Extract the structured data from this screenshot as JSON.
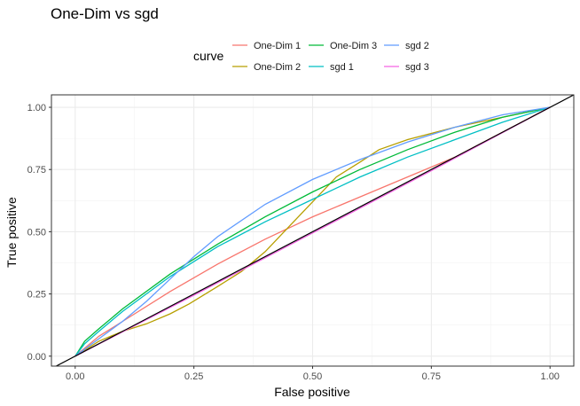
{
  "chart_data": {
    "type": "line",
    "title": "One-Dim vs sgd",
    "xlabel": "False positive",
    "ylabel": "True positive",
    "xlim": [
      -0.05,
      1.05
    ],
    "ylim": [
      -0.04,
      1.05
    ],
    "x_ticks": [
      "0.00",
      "0.25",
      "0.50",
      "0.75",
      "1.00"
    ],
    "y_ticks": [
      "0.00",
      "0.25",
      "0.50",
      "0.75",
      "1.00"
    ],
    "grid": true,
    "legend": {
      "title": "curve",
      "placement": "top",
      "entries": [
        "One-Dim 1",
        "One-Dim 2",
        "One-Dim 3",
        "sgd 1",
        "sgd 2",
        "sgd 3"
      ]
    },
    "reference_line": {
      "slope": 1,
      "intercept": 0,
      "color": "#000000"
    },
    "series": [
      {
        "name": "One-Dim 1",
        "color": "#F8766D",
        "x": [
          0,
          0.05,
          0.1,
          0.2,
          0.3,
          0.4,
          0.5,
          0.6,
          0.7,
          0.8,
          0.9,
          1.0
        ],
        "y": [
          0,
          0.08,
          0.14,
          0.26,
          0.37,
          0.47,
          0.56,
          0.64,
          0.72,
          0.8,
          0.9,
          1.0
        ]
      },
      {
        "name": "One-Dim 2",
        "color": "#B79F00",
        "x": [
          0,
          0.05,
          0.1,
          0.15,
          0.2,
          0.24,
          0.3,
          0.35,
          0.4,
          0.45,
          0.5,
          0.55,
          0.6,
          0.64,
          0.7,
          0.8,
          0.9,
          1.0
        ],
        "y": [
          0,
          0.06,
          0.1,
          0.13,
          0.17,
          0.21,
          0.28,
          0.34,
          0.42,
          0.52,
          0.62,
          0.72,
          0.78,
          0.83,
          0.87,
          0.92,
          0.96,
          1.0
        ]
      },
      {
        "name": "One-Dim 3",
        "color": "#00BA38",
        "x": [
          0,
          0.02,
          0.05,
          0.1,
          0.2,
          0.3,
          0.4,
          0.5,
          0.6,
          0.7,
          0.8,
          0.9,
          1.0
        ],
        "y": [
          0,
          0.06,
          0.11,
          0.19,
          0.33,
          0.45,
          0.56,
          0.66,
          0.75,
          0.83,
          0.9,
          0.96,
          1.0
        ]
      },
      {
        "name": "sgd 1",
        "color": "#00BFC4",
        "x": [
          0,
          0.02,
          0.05,
          0.1,
          0.2,
          0.3,
          0.4,
          0.5,
          0.6,
          0.7,
          0.8,
          0.9,
          1.0
        ],
        "y": [
          0,
          0.05,
          0.1,
          0.18,
          0.32,
          0.44,
          0.54,
          0.63,
          0.72,
          0.8,
          0.87,
          0.94,
          1.0
        ]
      },
      {
        "name": "sgd 2",
        "color": "#619CFF",
        "x": [
          0,
          0.05,
          0.1,
          0.15,
          0.2,
          0.25,
          0.3,
          0.4,
          0.5,
          0.6,
          0.7,
          0.8,
          0.9,
          1.0
        ],
        "y": [
          0,
          0.07,
          0.14,
          0.22,
          0.31,
          0.4,
          0.48,
          0.61,
          0.71,
          0.79,
          0.86,
          0.92,
          0.97,
          1.0
        ]
      },
      {
        "name": "sgd 3",
        "color": "#F564E3",
        "x": [
          0,
          0.25,
          0.5,
          0.75,
          1.0
        ],
        "y": [
          0,
          0.245,
          0.495,
          0.745,
          1.0
        ]
      }
    ]
  }
}
